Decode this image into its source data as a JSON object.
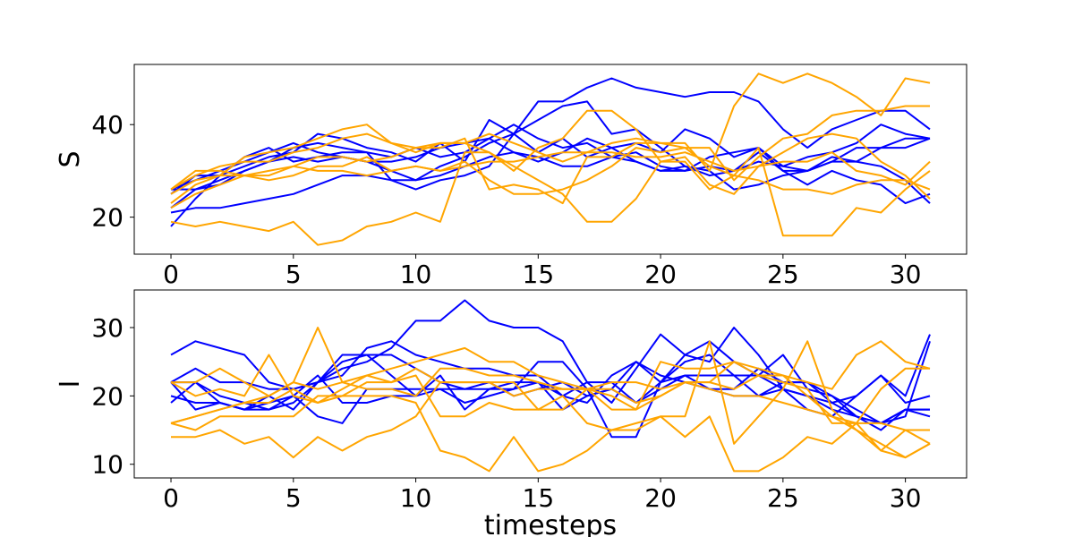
{
  "chart_data": [
    {
      "type": "line",
      "xlabel": "",
      "ylabel": "S",
      "xlim": [
        -1.5,
        32.5
      ],
      "ylim": [
        12,
        53
      ],
      "x_ticks": [
        0,
        5,
        10,
        15,
        20,
        25,
        30
      ],
      "y_ticks": [
        20,
        40
      ],
      "grid": false,
      "series": [
        {
          "color": "#0000ff",
          "values": [
            22,
            26,
            28,
            30,
            32,
            33,
            32,
            33,
            32,
            32,
            33,
            35,
            36,
            37,
            34,
            32,
            34,
            37,
            35,
            32,
            30,
            31,
            29,
            30,
            32,
            31,
            30,
            32,
            35,
            35,
            37,
            37
          ]
        },
        {
          "color": "#0000ff",
          "values": [
            21,
            22,
            22,
            23,
            24,
            25,
            27,
            29,
            29,
            28,
            28,
            29,
            31,
            33,
            34,
            33,
            31,
            31,
            33,
            34,
            31,
            30,
            33,
            34,
            35,
            31,
            33,
            34,
            36,
            40,
            38,
            37
          ]
        },
        {
          "color": "#0000ff",
          "values": [
            26,
            26,
            27,
            30,
            32,
            35,
            36,
            35,
            34,
            33,
            35,
            33,
            34,
            37,
            40,
            37,
            35,
            36,
            33,
            32,
            30,
            30,
            31,
            30,
            34,
            30,
            27,
            30,
            28,
            27,
            23,
            25
          ]
        },
        {
          "color": "#0000ff",
          "values": [
            26,
            28,
            30,
            32,
            34,
            36,
            34,
            33,
            32,
            30,
            28,
            31,
            33,
            36,
            38,
            41,
            44,
            45,
            38,
            39,
            35,
            31,
            30,
            26,
            27,
            29,
            30,
            33,
            32,
            35,
            35,
            37
          ]
        },
        {
          "color": "#0000ff",
          "values": [
            18,
            24,
            29,
            31,
            33,
            34,
            38,
            37,
            35,
            34,
            32,
            36,
            32,
            41,
            38,
            34,
            37,
            33,
            35,
            36,
            34,
            39,
            37,
            33,
            35,
            30,
            30,
            32,
            32,
            31,
            28,
            23
          ]
        },
        {
          "color": "#0000ff",
          "values": [
            25,
            29,
            29,
            33,
            35,
            32,
            33,
            34,
            34,
            28,
            26,
            28,
            29,
            31,
            38,
            45,
            45,
            48,
            50,
            48,
            47,
            46,
            47,
            47,
            45,
            39,
            35,
            39,
            41,
            43,
            43,
            39
          ]
        },
        {
          "color": "#ffa500",
          "values": [
            26,
            30,
            30,
            29,
            30,
            31,
            33,
            33,
            32,
            33,
            35,
            36,
            36,
            38,
            36,
            34,
            32,
            34,
            36,
            37,
            36,
            35,
            31,
            29,
            28,
            26,
            26,
            25,
            27,
            28,
            28,
            26
          ]
        },
        {
          "color": "#ffa500",
          "values": [
            22,
            25,
            27,
            29,
            29,
            31,
            30,
            30,
            29,
            30,
            31,
            30,
            31,
            32,
            32,
            33,
            34,
            34,
            34,
            33,
            33,
            34,
            32,
            30,
            31,
            32,
            32,
            34,
            30,
            29,
            27,
            32
          ]
        },
        {
          "color": "#ffa500",
          "values": [
            19,
            18,
            19,
            18,
            17,
            19,
            14,
            15,
            18,
            19,
            21,
            19,
            34,
            34,
            31,
            28,
            25,
            19,
            19,
            24,
            32,
            32,
            26,
            29,
            35,
            16,
            16,
            16,
            22,
            21,
            26,
            30
          ]
        },
        {
          "color": "#ffa500",
          "values": [
            23,
            27,
            29,
            29,
            28,
            29,
            31,
            31,
            33,
            30,
            31,
            30,
            32,
            28,
            25,
            25,
            26,
            28,
            31,
            35,
            34,
            35,
            35,
            28,
            33,
            37,
            38,
            42,
            43,
            43,
            44,
            44
          ]
        },
        {
          "color": "#ffa500",
          "values": [
            26,
            29,
            31,
            32,
            32,
            34,
            35,
            37,
            38,
            36,
            35,
            35,
            37,
            26,
            27,
            26,
            23,
            33,
            33,
            36,
            36,
            36,
            30,
            44,
            51,
            49,
            51,
            49,
            46,
            42,
            50,
            49
          ]
        },
        {
          "color": "#ffa500",
          "values": [
            25,
            28,
            29,
            33,
            34,
            35,
            37,
            39,
            40,
            36,
            34,
            36,
            36,
            34,
            30,
            35,
            37,
            43,
            43,
            39,
            32,
            33,
            27,
            25,
            31,
            34,
            37,
            38,
            37,
            32,
            29,
            24
          ]
        }
      ]
    },
    {
      "type": "line",
      "xlabel": "timesteps",
      "ylabel": "I",
      "xlim": [
        -1.5,
        32.5
      ],
      "ylim": [
        8,
        35.5
      ],
      "x_ticks": [
        0,
        5,
        10,
        15,
        20,
        25,
        30
      ],
      "y_ticks": [
        10,
        20,
        30
      ],
      "grid": false,
      "series": [
        {
          "color": "#0000ff",
          "values": [
            22,
            22,
            20,
            19,
            18,
            19,
            22,
            26,
            26,
            23,
            20,
            21,
            21,
            22,
            20,
            21,
            22,
            20,
            21,
            19,
            21,
            23,
            23,
            23,
            20,
            21,
            20,
            19,
            17,
            15,
            18,
            18
          ]
        },
        {
          "color": "#0000ff",
          "values": [
            26,
            28,
            27,
            26,
            22,
            21,
            22,
            23,
            27,
            28,
            26,
            25,
            24,
            24,
            23,
            23,
            20,
            19,
            23,
            25,
            23,
            22,
            21,
            21,
            24,
            22,
            22,
            19,
            20,
            23,
            20,
            29
          ]
        },
        {
          "color": "#0000ff",
          "values": [
            20,
            19,
            19,
            18,
            20,
            18,
            22,
            24,
            25,
            27,
            31,
            31,
            34,
            31,
            30,
            30,
            28,
            22,
            19,
            24,
            29,
            26,
            28,
            25,
            23,
            26,
            21,
            20,
            17,
            16,
            18,
            17
          ]
        },
        {
          "color": "#0000ff",
          "values": [
            22,
            24,
            22,
            22,
            21,
            21,
            22,
            25,
            26,
            26,
            24,
            22,
            21,
            21,
            22,
            22,
            20,
            22,
            22,
            19,
            22,
            25,
            26,
            23,
            23,
            21,
            18,
            17,
            20,
            23,
            19,
            20
          ]
        },
        {
          "color": "#0000ff",
          "values": [
            22,
            18,
            19,
            18,
            18,
            20,
            17,
            16,
            21,
            21,
            21,
            21,
            19,
            20,
            21,
            25,
            25,
            21,
            14,
            14,
            22,
            23,
            21,
            20,
            20,
            22,
            22,
            20,
            18,
            16,
            18,
            18
          ]
        },
        {
          "color": "#0000ff",
          "values": [
            19,
            22,
            19,
            18,
            19,
            20,
            23,
            19,
            19,
            20,
            20,
            23,
            18,
            21,
            21,
            22,
            18,
            20,
            21,
            25,
            22,
            26,
            25,
            30,
            26,
            21,
            20,
            18,
            17,
            16,
            17,
            28
          ]
        },
        {
          "color": "#ffa500",
          "values": [
            16,
            17,
            18,
            19,
            20,
            22,
            30,
            22,
            23,
            24,
            25,
            26,
            27,
            25,
            25,
            23,
            22,
            21,
            21,
            19,
            20,
            22,
            21,
            20,
            20,
            19,
            18,
            17,
            16,
            16,
            15,
            15
          ]
        },
        {
          "color": "#ffa500",
          "values": [
            14,
            14,
            15,
            13,
            14,
            11,
            14,
            12,
            14,
            15,
            17,
            22,
            22,
            22,
            20,
            21,
            21,
            21,
            22,
            22,
            21,
            22,
            22,
            25,
            23,
            23,
            20,
            17,
            15,
            12,
            15,
            13
          ]
        },
        {
          "color": "#ffa500",
          "values": [
            16,
            15,
            17,
            17,
            17,
            17,
            20,
            20,
            22,
            22,
            23,
            17,
            17,
            19,
            18,
            18,
            20,
            16,
            15,
            15,
            17,
            17,
            28,
            13,
            17,
            21,
            28,
            18,
            15,
            13,
            11,
            13
          ]
        },
        {
          "color": "#ffa500",
          "values": [
            22,
            22,
            24,
            22,
            20,
            22,
            21,
            22,
            21,
            21,
            20,
            24,
            24,
            23,
            23,
            22,
            21,
            21,
            20,
            18,
            20,
            22,
            22,
            21,
            23,
            22,
            21,
            16,
            16,
            21,
            24,
            24
          ]
        },
        {
          "color": "#ffa500",
          "values": [
            22,
            20,
            21,
            20,
            26,
            20,
            19,
            21,
            23,
            22,
            24,
            22,
            22,
            22,
            22,
            18,
            18,
            21,
            18,
            18,
            25,
            24,
            24,
            25,
            24,
            23,
            22,
            21,
            26,
            28,
            25,
            24
          ]
        },
        {
          "color": "#ffa500",
          "values": [
            16,
            17,
            18,
            19,
            19,
            21,
            19,
            20,
            20,
            20,
            19,
            12,
            11,
            9,
            14,
            9,
            10,
            12,
            15,
            16,
            17,
            14,
            17,
            9,
            9,
            11,
            14,
            13,
            16,
            12,
            11,
            13
          ]
        }
      ]
    }
  ]
}
